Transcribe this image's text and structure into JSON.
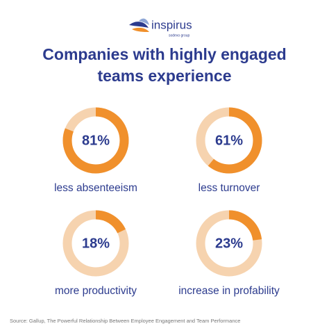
{
  "logo": {
    "name": "inspirus",
    "tagline": "sodexo group"
  },
  "title_lines": [
    "Companies with highly engaged",
    "teams experience"
  ],
  "chart_data": [
    {
      "type": "donut",
      "title": "less absenteeism",
      "values": [
        81
      ],
      "value_labels": [
        "81%"
      ],
      "ylim": [
        0,
        100
      ],
      "color": "#F0902C",
      "track_color": "#F6D3AF"
    },
    {
      "type": "donut",
      "title": "less turnover",
      "values": [
        61
      ],
      "value_labels": [
        "61%"
      ],
      "ylim": [
        0,
        100
      ],
      "color": "#F0902C",
      "track_color": "#F6D3AF"
    },
    {
      "type": "donut",
      "title": "more productivity",
      "values": [
        18
      ],
      "value_labels": [
        "18%"
      ],
      "ylim": [
        0,
        100
      ],
      "color": "#F0902C",
      "track_color": "#F6D3AF"
    },
    {
      "type": "donut",
      "title": "increase in profability",
      "values": [
        23
      ],
      "value_labels": [
        "23%"
      ],
      "ylim": [
        0,
        100
      ],
      "color": "#F0902C",
      "track_color": "#F6D3AF"
    }
  ],
  "source": "Source: Gallup, The Powerful Relationship Between Employee Engagement and Team Performance"
}
